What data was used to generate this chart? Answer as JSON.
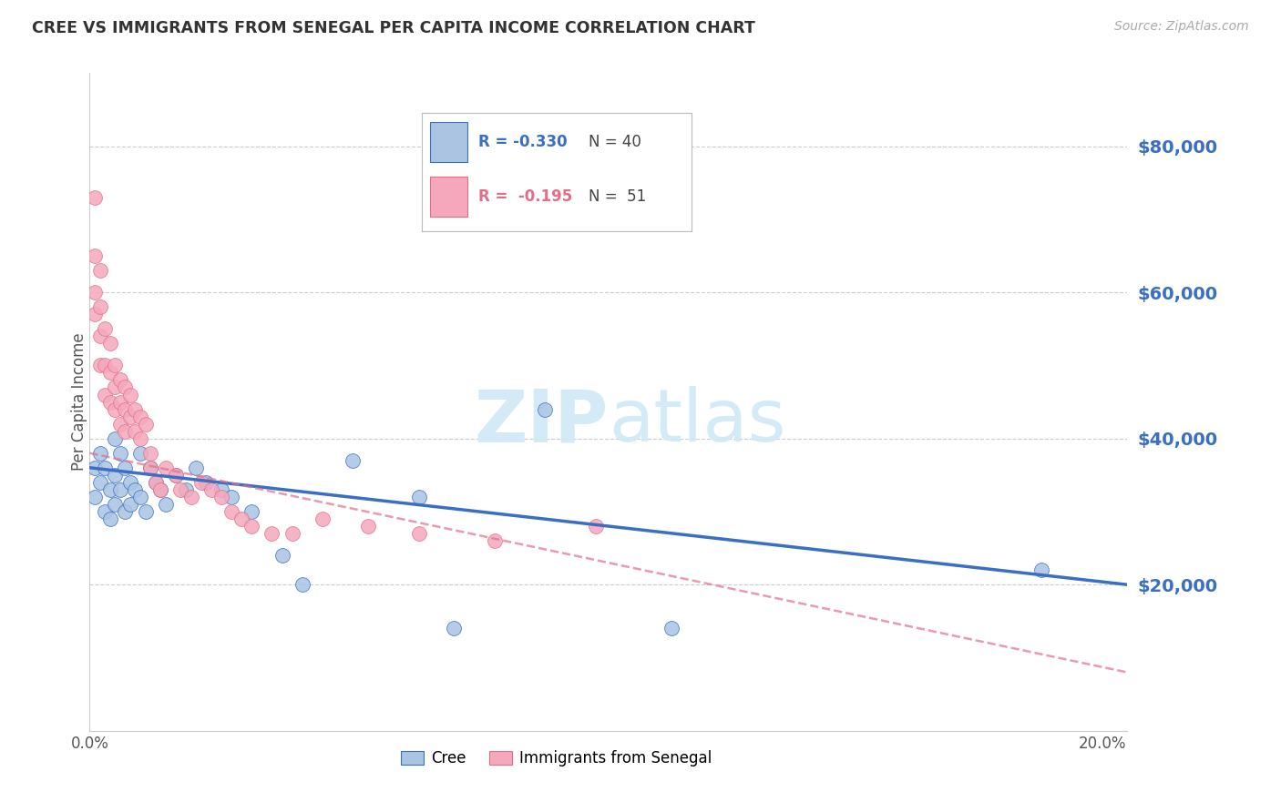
{
  "title": "CREE VS IMMIGRANTS FROM SENEGAL PER CAPITA INCOME CORRELATION CHART",
  "source": "Source: ZipAtlas.com",
  "ylabel": "Per Capita Income",
  "ytick_labels": [
    "$80,000",
    "$60,000",
    "$40,000",
    "$20,000"
  ],
  "ytick_values": [
    80000,
    60000,
    40000,
    20000
  ],
  "ylim": [
    0,
    90000
  ],
  "xlim": [
    0.0,
    0.205
  ],
  "cree_R": -0.33,
  "cree_N": 40,
  "senegal_R": -0.195,
  "senegal_N": 51,
  "cree_color": "#aac4e2",
  "senegal_color": "#f5a8bc",
  "cree_line_color": "#3a6fc4",
  "senegal_line_color": "#e0708a",
  "watermark_color": "#d0e8f5",
  "cree_x": [
    0.001,
    0.001,
    0.002,
    0.002,
    0.003,
    0.003,
    0.004,
    0.004,
    0.005,
    0.005,
    0.005,
    0.006,
    0.006,
    0.007,
    0.007,
    0.008,
    0.008,
    0.009,
    0.01,
    0.01,
    0.011,
    0.012,
    0.013,
    0.014,
    0.015,
    0.017,
    0.019,
    0.021,
    0.023,
    0.026,
    0.028,
    0.032,
    0.038,
    0.042,
    0.052,
    0.065,
    0.072,
    0.09,
    0.115,
    0.188
  ],
  "cree_y": [
    36000,
    32000,
    38000,
    34000,
    36000,
    30000,
    33000,
    29000,
    40000,
    35000,
    31000,
    38000,
    33000,
    36000,
    30000,
    34000,
    31000,
    33000,
    38000,
    32000,
    30000,
    36000,
    34000,
    33000,
    31000,
    35000,
    33000,
    36000,
    34000,
    33000,
    32000,
    30000,
    24000,
    20000,
    37000,
    32000,
    14000,
    44000,
    14000,
    22000
  ],
  "senegal_x": [
    0.001,
    0.001,
    0.001,
    0.001,
    0.002,
    0.002,
    0.002,
    0.002,
    0.003,
    0.003,
    0.003,
    0.004,
    0.004,
    0.004,
    0.005,
    0.005,
    0.005,
    0.006,
    0.006,
    0.006,
    0.007,
    0.007,
    0.007,
    0.008,
    0.008,
    0.009,
    0.009,
    0.01,
    0.01,
    0.011,
    0.012,
    0.012,
    0.013,
    0.014,
    0.015,
    0.017,
    0.018,
    0.02,
    0.022,
    0.024,
    0.026,
    0.028,
    0.03,
    0.032,
    0.036,
    0.04,
    0.046,
    0.055,
    0.065,
    0.08,
    0.1
  ],
  "senegal_y": [
    73000,
    65000,
    60000,
    57000,
    63000,
    58000,
    54000,
    50000,
    55000,
    50000,
    46000,
    53000,
    49000,
    45000,
    50000,
    47000,
    44000,
    48000,
    45000,
    42000,
    47000,
    44000,
    41000,
    46000,
    43000,
    44000,
    41000,
    43000,
    40000,
    42000,
    38000,
    36000,
    34000,
    33000,
    36000,
    35000,
    33000,
    32000,
    34000,
    33000,
    32000,
    30000,
    29000,
    28000,
    27000,
    27000,
    29000,
    28000,
    27000,
    26000,
    28000
  ]
}
